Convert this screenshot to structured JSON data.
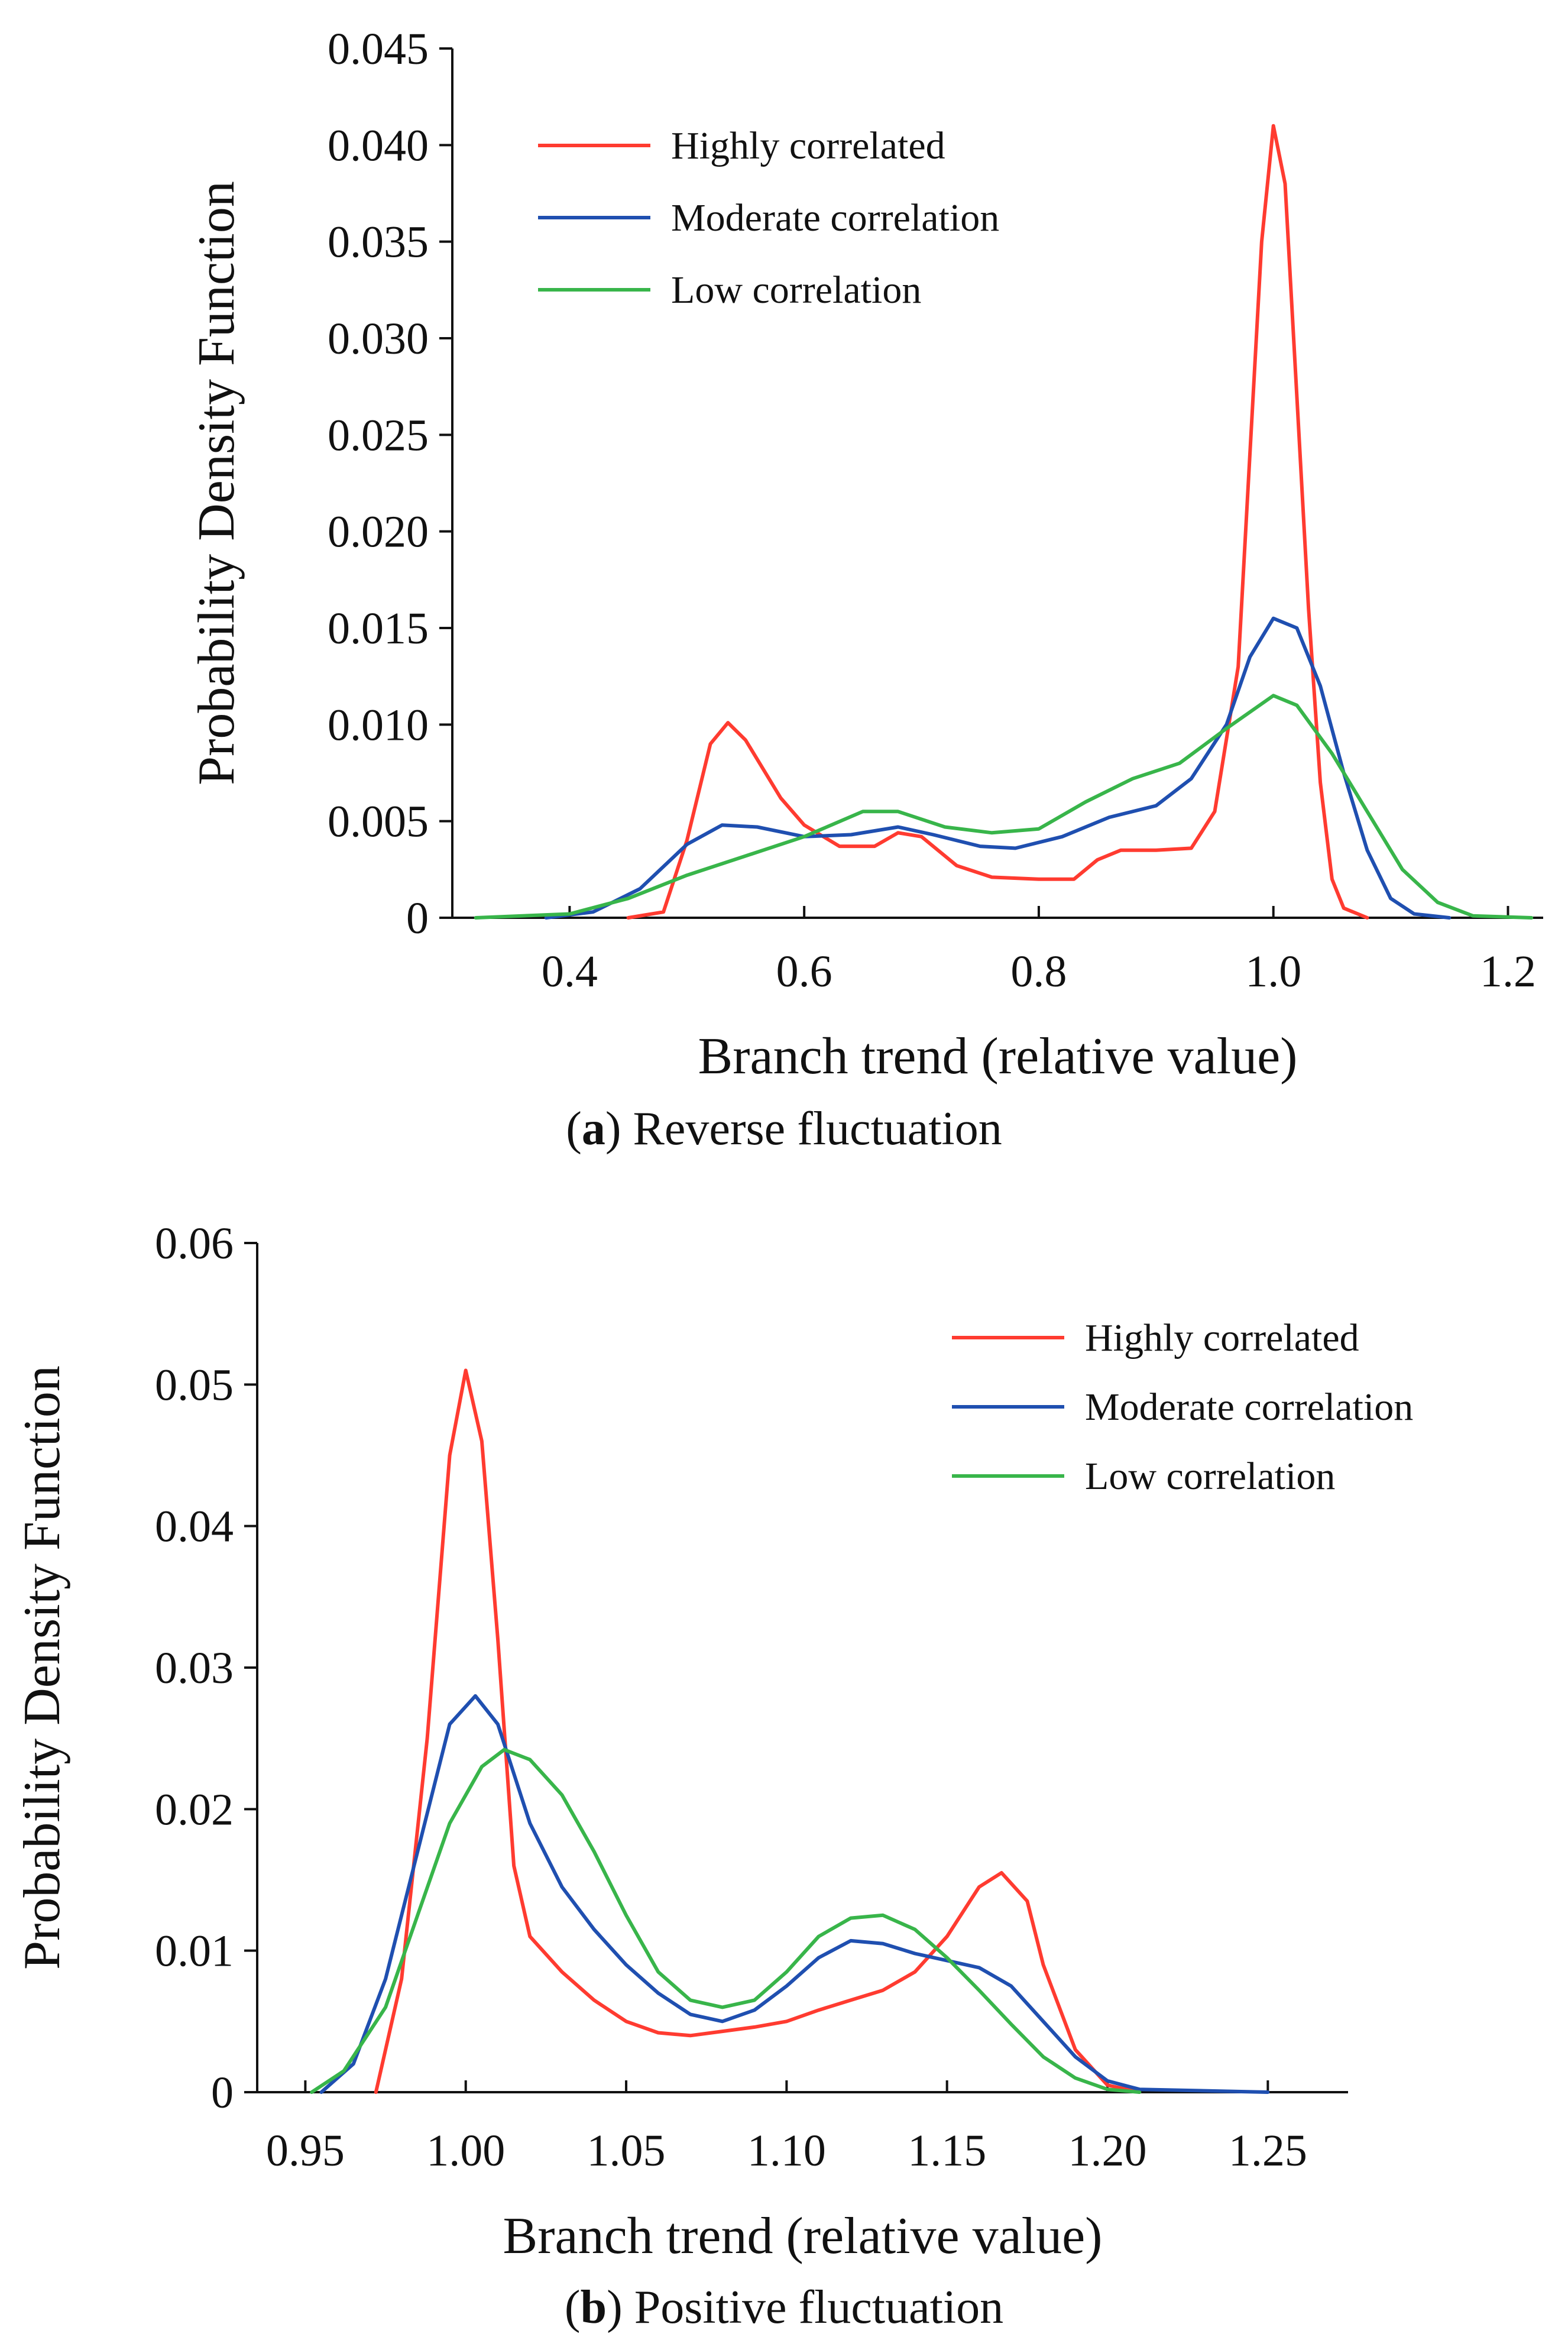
{
  "chart_data": [
    {
      "type": "line",
      "panel_letter": "a",
      "caption": "Reverse fluctuation",
      "xlabel": "Branch trend (relative value)",
      "ylabel": "Probability Density Function",
      "xlim": [
        0.3,
        1.23
      ],
      "ylim": [
        0,
        0.045
      ],
      "xticks": [
        0.4,
        0.6,
        0.8,
        1.0,
        1.2
      ],
      "xtick_labels": [
        "0.4",
        "0.6",
        "0.8",
        "1.0",
        "1.2"
      ],
      "yticks": [
        0,
        0.005,
        0.01,
        0.015,
        0.02,
        0.025,
        0.03,
        0.035,
        0.04,
        0.045
      ],
      "ytick_labels": [
        "0",
        "0.005",
        "0.010",
        "0.015",
        "0.020",
        "0.025",
        "0.030",
        "0.035",
        "0.040",
        "0.045"
      ],
      "legend_position": "top-left",
      "grid": false,
      "series": [
        {
          "name": "Highly correlated",
          "color": "#ff3b30",
          "points": [
            [
              0.45,
              0
            ],
            [
              0.48,
              0.0003
            ],
            [
              0.5,
              0.004
            ],
            [
              0.52,
              0.009
            ],
            [
              0.535,
              0.0101
            ],
            [
              0.55,
              0.0092
            ],
            [
              0.58,
              0.0062
            ],
            [
              0.6,
              0.0048
            ],
            [
              0.63,
              0.0037
            ],
            [
              0.66,
              0.0037
            ],
            [
              0.68,
              0.0044
            ],
            [
              0.7,
              0.0042
            ],
            [
              0.73,
              0.0027
            ],
            [
              0.76,
              0.0021
            ],
            [
              0.8,
              0.002
            ],
            [
              0.83,
              0.002
            ],
            [
              0.85,
              0.003
            ],
            [
              0.87,
              0.0035
            ],
            [
              0.9,
              0.0035
            ],
            [
              0.93,
              0.0036
            ],
            [
              0.95,
              0.0055
            ],
            [
              0.97,
              0.013
            ],
            [
              0.98,
              0.024
            ],
            [
              0.99,
              0.035
            ],
            [
              1.0,
              0.041
            ],
            [
              1.01,
              0.038
            ],
            [
              1.02,
              0.027
            ],
            [
              1.03,
              0.016
            ],
            [
              1.04,
              0.007
            ],
            [
              1.05,
              0.002
            ],
            [
              1.06,
              0.0005
            ],
            [
              1.08,
              0
            ]
          ]
        },
        {
          "name": "Moderate correlation",
          "color": "#1f4fb0",
          "points": [
            [
              0.38,
              0
            ],
            [
              0.42,
              0.0003
            ],
            [
              0.46,
              0.0015
            ],
            [
              0.5,
              0.0038
            ],
            [
              0.53,
              0.0048
            ],
            [
              0.56,
              0.0047
            ],
            [
              0.6,
              0.0042
            ],
            [
              0.64,
              0.0043
            ],
            [
              0.68,
              0.0047
            ],
            [
              0.71,
              0.0043
            ],
            [
              0.75,
              0.0037
            ],
            [
              0.78,
              0.0036
            ],
            [
              0.82,
              0.0042
            ],
            [
              0.86,
              0.0052
            ],
            [
              0.9,
              0.0058
            ],
            [
              0.93,
              0.0072
            ],
            [
              0.96,
              0.01
            ],
            [
              0.98,
              0.0135
            ],
            [
              1.0,
              0.0155
            ],
            [
              1.02,
              0.015
            ],
            [
              1.04,
              0.012
            ],
            [
              1.06,
              0.0075
            ],
            [
              1.08,
              0.0035
            ],
            [
              1.1,
              0.001
            ],
            [
              1.12,
              0.0002
            ],
            [
              1.15,
              0
            ]
          ]
        },
        {
          "name": "Low correlation",
          "color": "#38b54a",
          "points": [
            [
              0.32,
              0
            ],
            [
              0.4,
              0.0002
            ],
            [
              0.45,
              0.001
            ],
            [
              0.5,
              0.0022
            ],
            [
              0.55,
              0.0032
            ],
            [
              0.6,
              0.0042
            ],
            [
              0.65,
              0.0055
            ],
            [
              0.68,
              0.0055
            ],
            [
              0.72,
              0.0047
            ],
            [
              0.76,
              0.0044
            ],
            [
              0.8,
              0.0046
            ],
            [
              0.84,
              0.006
            ],
            [
              0.88,
              0.0072
            ],
            [
              0.92,
              0.008
            ],
            [
              0.96,
              0.0098
            ],
            [
              1.0,
              0.0115
            ],
            [
              1.02,
              0.011
            ],
            [
              1.05,
              0.0085
            ],
            [
              1.08,
              0.0055
            ],
            [
              1.11,
              0.0025
            ],
            [
              1.14,
              0.0008
            ],
            [
              1.17,
              0.0001
            ],
            [
              1.22,
              0
            ]
          ]
        }
      ]
    },
    {
      "type": "line",
      "panel_letter": "b",
      "caption": "Positive fluctuation",
      "xlabel": "Branch trend (relative value)",
      "ylabel": "Probability Density Function",
      "xlim": [
        0.935,
        1.275
      ],
      "ylim": [
        0,
        0.06
      ],
      "xticks": [
        0.95,
        1.0,
        1.05,
        1.1,
        1.15,
        1.2,
        1.25
      ],
      "xtick_labels": [
        "0.95",
        "1.00",
        "1.05",
        "1.10",
        "1.15",
        "1.20",
        "1.25"
      ],
      "yticks": [
        0,
        0.01,
        0.02,
        0.03,
        0.04,
        0.05,
        0.06
      ],
      "ytick_labels": [
        "0",
        "0.01",
        "0.02",
        "0.03",
        "0.04",
        "0.05",
        "0.06"
      ],
      "legend_position": "top-right",
      "grid": false,
      "series": [
        {
          "name": "Highly correlated",
          "color": "#ff3b30",
          "points": [
            [
              0.972,
              0
            ],
            [
              0.98,
              0.008
            ],
            [
              0.988,
              0.025
            ],
            [
              0.995,
              0.045
            ],
            [
              1.0,
              0.051
            ],
            [
              1.005,
              0.046
            ],
            [
              1.01,
              0.032
            ],
            [
              1.015,
              0.016
            ],
            [
              1.02,
              0.011
            ],
            [
              1.03,
              0.0085
            ],
            [
              1.04,
              0.0065
            ],
            [
              1.05,
              0.005
            ],
            [
              1.06,
              0.0042
            ],
            [
              1.07,
              0.004
            ],
            [
              1.08,
              0.0043
            ],
            [
              1.09,
              0.0046
            ],
            [
              1.1,
              0.005
            ],
            [
              1.11,
              0.0058
            ],
            [
              1.12,
              0.0065
            ],
            [
              1.13,
              0.0072
            ],
            [
              1.14,
              0.0085
            ],
            [
              1.15,
              0.011
            ],
            [
              1.16,
              0.0145
            ],
            [
              1.167,
              0.0155
            ],
            [
              1.175,
              0.0135
            ],
            [
              1.18,
              0.009
            ],
            [
              1.19,
              0.003
            ],
            [
              1.2,
              0.0005
            ],
            [
              1.21,
              0
            ]
          ]
        },
        {
          "name": "Moderate correlation",
          "color": "#1f4fb0",
          "points": [
            [
              0.955,
              0
            ],
            [
              0.965,
              0.002
            ],
            [
              0.975,
              0.008
            ],
            [
              0.985,
              0.017
            ],
            [
              0.995,
              0.026
            ],
            [
              1.003,
              0.028
            ],
            [
              1.01,
              0.026
            ],
            [
              1.02,
              0.019
            ],
            [
              1.03,
              0.0145
            ],
            [
              1.04,
              0.0115
            ],
            [
              1.05,
              0.009
            ],
            [
              1.06,
              0.007
            ],
            [
              1.07,
              0.0055
            ],
            [
              1.08,
              0.005
            ],
            [
              1.09,
              0.0058
            ],
            [
              1.1,
              0.0075
            ],
            [
              1.11,
              0.0095
            ],
            [
              1.12,
              0.0107
            ],
            [
              1.13,
              0.0105
            ],
            [
              1.14,
              0.0098
            ],
            [
              1.15,
              0.0093
            ],
            [
              1.16,
              0.0088
            ],
            [
              1.17,
              0.0075
            ],
            [
              1.18,
              0.005
            ],
            [
              1.19,
              0.0025
            ],
            [
              1.2,
              0.0008
            ],
            [
              1.21,
              0.0002
            ],
            [
              1.25,
              0
            ]
          ]
        },
        {
          "name": "Low correlation",
          "color": "#38b54a",
          "points": [
            [
              0.952,
              0
            ],
            [
              0.962,
              0.0015
            ],
            [
              0.975,
              0.006
            ],
            [
              0.985,
              0.0125
            ],
            [
              0.995,
              0.019
            ],
            [
              1.005,
              0.023
            ],
            [
              1.012,
              0.0242
            ],
            [
              1.02,
              0.0235
            ],
            [
              1.03,
              0.021
            ],
            [
              1.04,
              0.017
            ],
            [
              1.05,
              0.0125
            ],
            [
              1.06,
              0.0085
            ],
            [
              1.07,
              0.0065
            ],
            [
              1.08,
              0.006
            ],
            [
              1.09,
              0.0065
            ],
            [
              1.1,
              0.0085
            ],
            [
              1.11,
              0.011
            ],
            [
              1.12,
              0.0123
            ],
            [
              1.13,
              0.0125
            ],
            [
              1.14,
              0.0115
            ],
            [
              1.15,
              0.0095
            ],
            [
              1.16,
              0.0072
            ],
            [
              1.17,
              0.0048
            ],
            [
              1.18,
              0.0025
            ],
            [
              1.19,
              0.001
            ],
            [
              1.2,
              0.0002
            ],
            [
              1.21,
              0
            ]
          ]
        }
      ]
    }
  ]
}
